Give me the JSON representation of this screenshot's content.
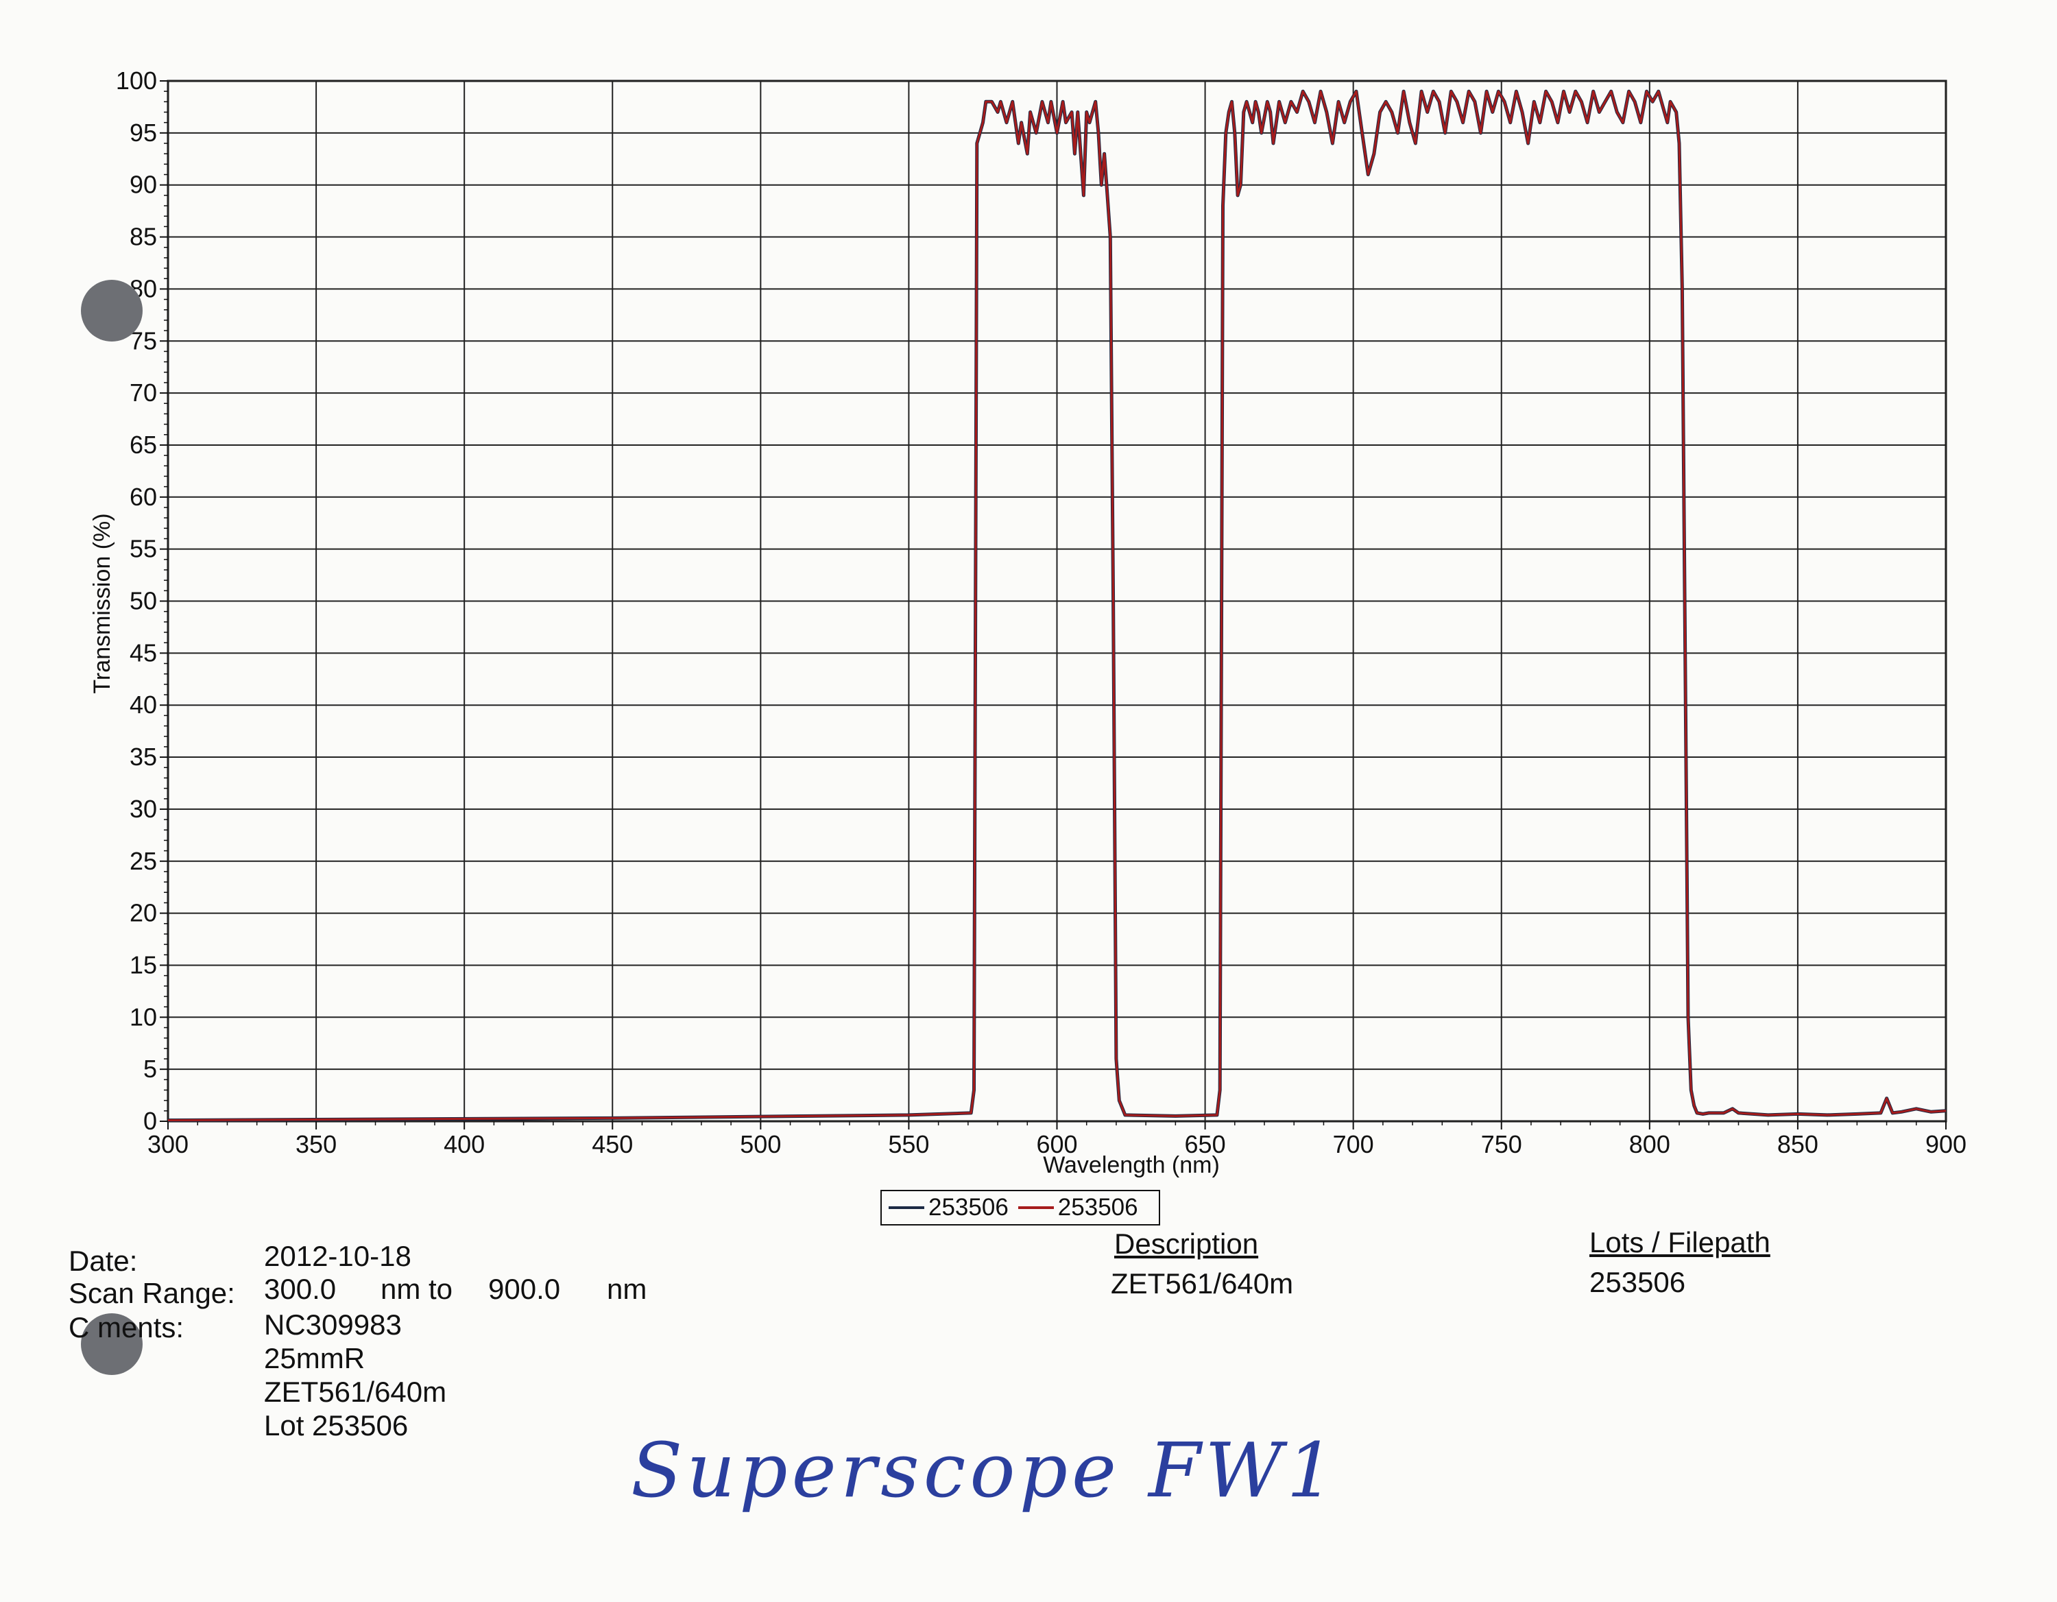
{
  "chart_data": {
    "type": "line",
    "xlabel": "Wavelength (nm)",
    "ylabel": "Transmission (%)",
    "xlim": [
      300,
      900
    ],
    "ylim": [
      0,
      100
    ],
    "x_ticks": [
      300,
      350,
      400,
      450,
      500,
      550,
      600,
      650,
      700,
      750,
      800,
      850,
      900
    ],
    "y_ticks": [
      0,
      5,
      10,
      15,
      20,
      25,
      30,
      35,
      40,
      45,
      50,
      55,
      60,
      65,
      70,
      75,
      80,
      85,
      90,
      95,
      100
    ],
    "grid": true,
    "legend_position": "bottom-center",
    "series": [
      {
        "name": "253506",
        "color": "#1c2a44",
        "points": [
          [
            300,
            0.1
          ],
          [
            450,
            0.3
          ],
          [
            550,
            0.6
          ],
          [
            571,
            0.8
          ],
          [
            572,
            3
          ],
          [
            573,
            94
          ],
          [
            575,
            96
          ],
          [
            576,
            98
          ],
          [
            578,
            98
          ],
          [
            580,
            97
          ],
          [
            581,
            98
          ],
          [
            583,
            96
          ],
          [
            585,
            98
          ],
          [
            587,
            94
          ],
          [
            588,
            96
          ],
          [
            590,
            93
          ],
          [
            591,
            97
          ],
          [
            593,
            95
          ],
          [
            595,
            98
          ],
          [
            597,
            96
          ],
          [
            598,
            98
          ],
          [
            600,
            95
          ],
          [
            602,
            98
          ],
          [
            603,
            96
          ],
          [
            605,
            97
          ],
          [
            606,
            93
          ],
          [
            607,
            97
          ],
          [
            609,
            89
          ],
          [
            610,
            97
          ],
          [
            611,
            96
          ],
          [
            613,
            98
          ],
          [
            614,
            95
          ],
          [
            615,
            90
          ],
          [
            616,
            93
          ],
          [
            617,
            89
          ],
          [
            618,
            85
          ],
          [
            619,
            50
          ],
          [
            620,
            6
          ],
          [
            621,
            2
          ],
          [
            623,
            0.6
          ],
          [
            640,
            0.5
          ],
          [
            654,
            0.6
          ],
          [
            655,
            3
          ],
          [
            656,
            88
          ],
          [
            657,
            95
          ],
          [
            658,
            97
          ],
          [
            659,
            98
          ],
          [
            660,
            95
          ],
          [
            661,
            89
          ],
          [
            662,
            90
          ],
          [
            663,
            97
          ],
          [
            664,
            98
          ],
          [
            666,
            96
          ],
          [
            667,
            98
          ],
          [
            668,
            97
          ],
          [
            669,
            95
          ],
          [
            671,
            98
          ],
          [
            672,
            97
          ],
          [
            673,
            94
          ],
          [
            675,
            98
          ],
          [
            677,
            96
          ],
          [
            679,
            98
          ],
          [
            681,
            97
          ],
          [
            683,
            99
          ],
          [
            685,
            98
          ],
          [
            687,
            96
          ],
          [
            689,
            99
          ],
          [
            691,
            97
          ],
          [
            693,
            94
          ],
          [
            695,
            98
          ],
          [
            697,
            96
          ],
          [
            699,
            98
          ],
          [
            701,
            99
          ],
          [
            703,
            95
          ],
          [
            705,
            91
          ],
          [
            707,
            93
          ],
          [
            709,
            97
          ],
          [
            711,
            98
          ],
          [
            713,
            97
          ],
          [
            715,
            95
          ],
          [
            717,
            99
          ],
          [
            719,
            96
          ],
          [
            721,
            94
          ],
          [
            723,
            99
          ],
          [
            725,
            97
          ],
          [
            727,
            99
          ],
          [
            729,
            98
          ],
          [
            731,
            95
          ],
          [
            733,
            99
          ],
          [
            735,
            98
          ],
          [
            737,
            96
          ],
          [
            739,
            99
          ],
          [
            741,
            98
          ],
          [
            743,
            95
          ],
          [
            745,
            99
          ],
          [
            747,
            97
          ],
          [
            749,
            99
          ],
          [
            751,
            98
          ],
          [
            753,
            96
          ],
          [
            755,
            99
          ],
          [
            757,
            97
          ],
          [
            759,
            94
          ],
          [
            761,
            98
          ],
          [
            763,
            96
          ],
          [
            765,
            99
          ],
          [
            767,
            98
          ],
          [
            769,
            96
          ],
          [
            771,
            99
          ],
          [
            773,
            97
          ],
          [
            775,
            99
          ],
          [
            777,
            98
          ],
          [
            779,
            96
          ],
          [
            781,
            99
          ],
          [
            783,
            97
          ],
          [
            785,
            98
          ],
          [
            787,
            99
          ],
          [
            789,
            97
          ],
          [
            791,
            96
          ],
          [
            793,
            99
          ],
          [
            795,
            98
          ],
          [
            797,
            96
          ],
          [
            799,
            99
          ],
          [
            801,
            98
          ],
          [
            803,
            99
          ],
          [
            805,
            97
          ],
          [
            806,
            96
          ],
          [
            807,
            98
          ],
          [
            809,
            97
          ],
          [
            810,
            94
          ],
          [
            811,
            80
          ],
          [
            812,
            45
          ],
          [
            813,
            10
          ],
          [
            814,
            3
          ],
          [
            815,
            1.5
          ],
          [
            816,
            0.8
          ],
          [
            818,
            0.7
          ],
          [
            820,
            0.8
          ],
          [
            825,
            0.8
          ],
          [
            828,
            1.2
          ],
          [
            830,
            0.8
          ],
          [
            840,
            0.6
          ],
          [
            850,
            0.7
          ],
          [
            860,
            0.6
          ],
          [
            870,
            0.7
          ],
          [
            878,
            0.8
          ],
          [
            880,
            2.2
          ],
          [
            882,
            0.8
          ],
          [
            885,
            0.9
          ],
          [
            890,
            1.2
          ],
          [
            895,
            0.9
          ],
          [
            900,
            1.0
          ]
        ]
      },
      {
        "name": "253506",
        "color": "#a61c1c",
        "points": [
          [
            300,
            0.1
          ],
          [
            450,
            0.3
          ],
          [
            550,
            0.6
          ],
          [
            571,
            0.8
          ],
          [
            572,
            3
          ],
          [
            573,
            94
          ],
          [
            575,
            96
          ],
          [
            576,
            98
          ],
          [
            578,
            98
          ],
          [
            580,
            97
          ],
          [
            581,
            98
          ],
          [
            583,
            96
          ],
          [
            585,
            98
          ],
          [
            587,
            94
          ],
          [
            588,
            96
          ],
          [
            590,
            93
          ],
          [
            591,
            97
          ],
          [
            593,
            95
          ],
          [
            595,
            98
          ],
          [
            597,
            96
          ],
          [
            598,
            98
          ],
          [
            600,
            95
          ],
          [
            602,
            98
          ],
          [
            603,
            96
          ],
          [
            605,
            97
          ],
          [
            606,
            93
          ],
          [
            607,
            97
          ],
          [
            609,
            89
          ],
          [
            610,
            97
          ],
          [
            611,
            96
          ],
          [
            613,
            98
          ],
          [
            614,
            95
          ],
          [
            615,
            90
          ],
          [
            616,
            93
          ],
          [
            617,
            89
          ],
          [
            618,
            85
          ],
          [
            619,
            50
          ],
          [
            620,
            6
          ],
          [
            621,
            2
          ],
          [
            623,
            0.6
          ],
          [
            640,
            0.5
          ],
          [
            654,
            0.6
          ],
          [
            655,
            3
          ],
          [
            656,
            88
          ],
          [
            657,
            95
          ],
          [
            658,
            97
          ],
          [
            659,
            98
          ],
          [
            660,
            95
          ],
          [
            661,
            89
          ],
          [
            662,
            90
          ],
          [
            663,
            97
          ],
          [
            664,
            98
          ],
          [
            666,
            96
          ],
          [
            667,
            98
          ],
          [
            668,
            97
          ],
          [
            669,
            95
          ],
          [
            671,
            98
          ],
          [
            672,
            97
          ],
          [
            673,
            94
          ],
          [
            675,
            98
          ],
          [
            677,
            96
          ],
          [
            679,
            98
          ],
          [
            681,
            97
          ],
          [
            683,
            99
          ],
          [
            685,
            98
          ],
          [
            687,
            96
          ],
          [
            689,
            99
          ],
          [
            691,
            97
          ],
          [
            693,
            94
          ],
          [
            695,
            98
          ],
          [
            697,
            96
          ],
          [
            699,
            98
          ],
          [
            701,
            99
          ],
          [
            703,
            95
          ],
          [
            705,
            91
          ],
          [
            707,
            93
          ],
          [
            709,
            97
          ],
          [
            711,
            98
          ],
          [
            713,
            97
          ],
          [
            715,
            95
          ],
          [
            717,
            99
          ],
          [
            719,
            96
          ],
          [
            721,
            94
          ],
          [
            723,
            99
          ],
          [
            725,
            97
          ],
          [
            727,
            99
          ],
          [
            729,
            98
          ],
          [
            731,
            95
          ],
          [
            733,
            99
          ],
          [
            735,
            98
          ],
          [
            737,
            96
          ],
          [
            739,
            99
          ],
          [
            741,
            98
          ],
          [
            743,
            95
          ],
          [
            745,
            99
          ],
          [
            747,
            97
          ],
          [
            749,
            99
          ],
          [
            751,
            98
          ],
          [
            753,
            96
          ],
          [
            755,
            99
          ],
          [
            757,
            97
          ],
          [
            759,
            94
          ],
          [
            761,
            98
          ],
          [
            763,
            96
          ],
          [
            765,
            99
          ],
          [
            767,
            98
          ],
          [
            769,
            96
          ],
          [
            771,
            99
          ],
          [
            773,
            97
          ],
          [
            775,
            99
          ],
          [
            777,
            98
          ],
          [
            779,
            96
          ],
          [
            781,
            99
          ],
          [
            783,
            97
          ],
          [
            785,
            98
          ],
          [
            787,
            99
          ],
          [
            789,
            97
          ],
          [
            791,
            96
          ],
          [
            793,
            99
          ],
          [
            795,
            98
          ],
          [
            797,
            96
          ],
          [
            799,
            99
          ],
          [
            801,
            98
          ],
          [
            803,
            99
          ],
          [
            805,
            97
          ],
          [
            806,
            96
          ],
          [
            807,
            98
          ],
          [
            809,
            97
          ],
          [
            810,
            94
          ],
          [
            811,
            80
          ],
          [
            812,
            45
          ],
          [
            813,
            10
          ],
          [
            814,
            3
          ],
          [
            815,
            1.5
          ],
          [
            816,
            0.8
          ],
          [
            818,
            0.7
          ],
          [
            820,
            0.8
          ],
          [
            825,
            0.8
          ],
          [
            828,
            1.2
          ],
          [
            830,
            0.8
          ],
          [
            840,
            0.6
          ],
          [
            850,
            0.7
          ],
          [
            860,
            0.6
          ],
          [
            870,
            0.7
          ],
          [
            878,
            0.8
          ],
          [
            880,
            2.2
          ],
          [
            882,
            0.8
          ],
          [
            885,
            0.9
          ],
          [
            890,
            1.2
          ],
          [
            895,
            0.9
          ],
          [
            900,
            1.0
          ]
        ]
      }
    ]
  },
  "legend": {
    "items": [
      "253506",
      "253506"
    ]
  },
  "info": {
    "date_label": "Date:",
    "date_value": "2012-10-18",
    "scan_label": "Scan Range:",
    "scan_start": "300.0",
    "scan_to": "nm to",
    "scan_end": "900.0",
    "scan_unit": "nm",
    "comments_label": "C ments:",
    "comments": [
      "NC309983",
      "25mmR",
      "ZET561/640m",
      "Lot 253506"
    ]
  },
  "description": {
    "header": "Description",
    "value": "ZET561/640m"
  },
  "lots": {
    "header": "Lots / Filepath",
    "value": "253506"
  },
  "handwritten_note": "Superscope FW1"
}
